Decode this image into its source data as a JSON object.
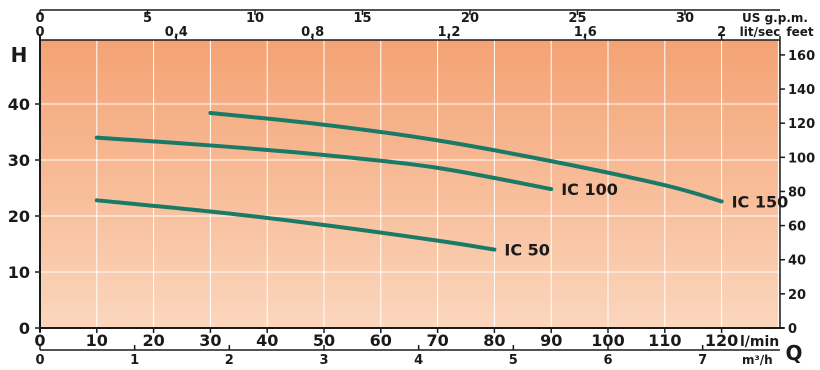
{
  "chart_data": {
    "type": "line",
    "x_axes": {
      "bottom_lmin": {
        "label": "l/min",
        "min": 0,
        "max": 120,
        "ticks": [
          0,
          10,
          20,
          30,
          40,
          50,
          60,
          70,
          80,
          90,
          100,
          110,
          120
        ]
      },
      "bottom_m3h": {
        "label": "m³/h",
        "min": 0,
        "max": 7.2,
        "ticks": [
          0,
          1,
          2,
          3,
          4,
          5,
          6,
          7
        ]
      },
      "top_usgpm": {
        "label": "US g.p.m.",
        "ticks": [
          0,
          5,
          10,
          15,
          20,
          25,
          30
        ]
      },
      "top_litsec": {
        "label": "lit/sec",
        "ticks": [
          "0",
          "0,4",
          "0,8",
          "1,2",
          "1,6",
          "2"
        ]
      }
    },
    "y_axes": {
      "left_m": {
        "label": "H",
        "min": 0,
        "max": 48,
        "ticks": [
          0,
          10,
          20,
          30,
          40
        ]
      },
      "right_feet": {
        "label": "feet",
        "ticks": [
          0,
          20,
          40,
          60,
          80,
          100,
          120,
          140,
          160
        ]
      }
    },
    "bottom_right_label": "Q",
    "series": [
      {
        "name": "IC 50",
        "points": [
          [
            10,
            22.8
          ],
          [
            30,
            20.8
          ],
          [
            50,
            18.4
          ],
          [
            70,
            15.6
          ],
          [
            80,
            14.0
          ]
        ]
      },
      {
        "name": "IC 100",
        "points": [
          [
            10,
            34.0
          ],
          [
            30,
            32.6
          ],
          [
            50,
            30.9
          ],
          [
            70,
            28.6
          ],
          [
            90,
            24.8
          ]
        ]
      },
      {
        "name": "IC 150",
        "points": [
          [
            30,
            38.4
          ],
          [
            50,
            36.3
          ],
          [
            70,
            33.5
          ],
          [
            90,
            29.8
          ],
          [
            110,
            25.5
          ],
          [
            120,
            22.6
          ]
        ]
      }
    ],
    "colors": {
      "curve": "#1a7a66",
      "bg_top": "#f4a273",
      "bg_bottom": "#fbd6bd",
      "grid": "#ffffff"
    },
    "grid": true
  }
}
